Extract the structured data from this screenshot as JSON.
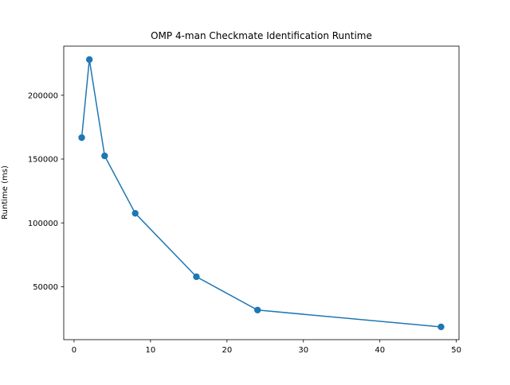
{
  "chart_data": {
    "type": "line",
    "title": "OMP 4-man Checkmate Identification Runtime",
    "xlabel": "",
    "ylabel": "Runtime (ms)",
    "xlim": [
      -1.35,
      50.35
    ],
    "ylim": [
      8500,
      238500
    ],
    "xticks": [
      0,
      10,
      20,
      30,
      40,
      50
    ],
    "xtick_labels": [
      "0",
      "10",
      "20",
      "30",
      "40",
      "50"
    ],
    "yticks": [
      50000,
      100000,
      150000,
      200000
    ],
    "ytick_labels": [
      "50000",
      "100000",
      "150000",
      "200000"
    ],
    "grid": false,
    "legend": "none",
    "series": [
      {
        "color": "#1f77b4",
        "marker": "circle",
        "x": [
          1,
          2,
          4,
          8,
          16,
          24,
          48
        ],
        "y": [
          166800,
          228000,
          152500,
          107500,
          57800,
          31700,
          18500
        ]
      }
    ]
  }
}
